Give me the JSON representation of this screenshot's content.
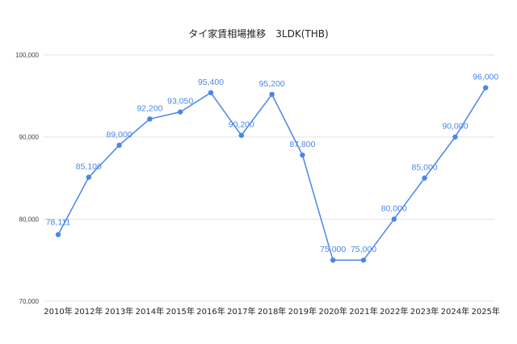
{
  "chart_data": {
    "type": "line",
    "title": "タイ家賃相場推移　3LDK(THB)",
    "xlabel": "",
    "ylabel": "",
    "categories": [
      "2010年",
      "2012年",
      "2013年",
      "2014年",
      "2015年",
      "2016年",
      "2017年",
      "2018年",
      "2019年",
      "2020年",
      "2021年",
      "2022年",
      "2023年",
      "2024年",
      "2025年"
    ],
    "series": [
      {
        "values": [
          78111,
          85100,
          89000,
          92200,
          93050,
          95400,
          90200,
          95200,
          87800,
          75000,
          75000,
          80000,
          85000,
          90000,
          96000
        ]
      }
    ],
    "data_labels": [
      "78,111",
      "85,100",
      "89,000",
      "92,200",
      "93,050",
      "95,400",
      "90,200",
      "95,200",
      "87,800",
      "75,000",
      "75,000",
      "80,000",
      "85,000",
      "90,000",
      "96,000"
    ],
    "ylim": [
      70000,
      100000
    ],
    "yticks": [
      70000,
      80000,
      90000,
      100000
    ],
    "ytick_labels": [
      "70,000",
      "80,000",
      "90,000",
      "100,000"
    ],
    "grid": true,
    "legend": "none",
    "colors": {
      "line": "#4a86e8",
      "label": "#4a86e8"
    }
  }
}
